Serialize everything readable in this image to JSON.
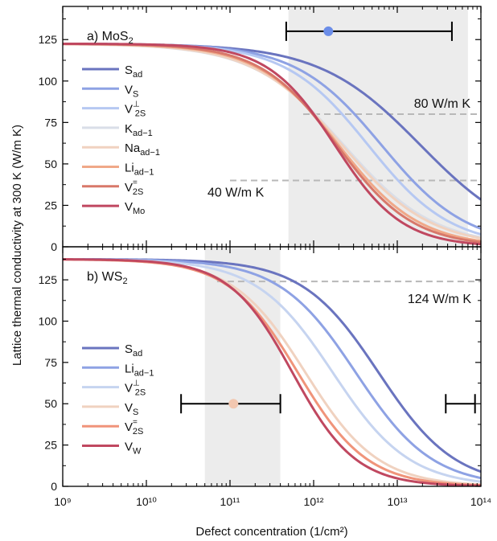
{
  "figure": {
    "ylabel": "Lattice thermal conductivity at 300 K (W/m K)",
    "xlabel": "Defect concentration (1/cm²)"
  },
  "chart_data": [
    {
      "type": "line",
      "panel": "top",
      "title_main": "a) MoS",
      "title_sub": "2",
      "xscale": "log",
      "xlim": [
        1000000000.0,
        100000000000000.0
      ],
      "ylim": [
        0,
        145
      ],
      "yticks": [
        0,
        25,
        50,
        75,
        100,
        125
      ],
      "x_tick_labels": [],
      "legend_position": "left",
      "grid": false,
      "shaded_band": [
        500000000000.0,
        8000000000000.0
      ],
      "shaded_band_2": [
        2500000000000.0,
        70000000000000.0
      ],
      "series": [
        {
          "main": "S",
          "sub": "ad",
          "sup": "",
          "color": "#6a74bf",
          "k0": 122.5,
          "x50": 19000000000000.0,
          "n": 0.72
        },
        {
          "main": "V",
          "sub": "S",
          "sup": "",
          "color": "#8ea2e4",
          "k0": 122.5,
          "x50": 6500000000000.0,
          "n": 0.85
        },
        {
          "main": "V",
          "sub": "2S",
          "sup": "⊥",
          "color": "#b6c8f2",
          "k0": 122.5,
          "x50": 4500000000000.0,
          "n": 0.88
        },
        {
          "main": "K",
          "sub": "ad−1",
          "sup": "",
          "color": "#d9dee8",
          "k0": 122.5,
          "x50": 2300000000000.0,
          "n": 0.8
        },
        {
          "main": "Na",
          "sub": "ad−1",
          "sup": "",
          "color": "#f0d2c0",
          "k0": 122.5,
          "x50": 2200000000000.0,
          "n": 0.82
        },
        {
          "main": "Li",
          "sub": "ad−1",
          "sup": "",
          "color": "#f0a888",
          "k0": 122.5,
          "x50": 2000000000000.0,
          "n": 0.9
        },
        {
          "main": "V",
          "sub": "2S",
          "sup": "=",
          "color": "#d8786a",
          "k0": 122.5,
          "x50": 1900000000000.0,
          "n": 0.95
        },
        {
          "main": "V",
          "sub": "Mo",
          "sup": "",
          "color": "#c04860",
          "k0": 122.5,
          "x50": 1800000000000.0,
          "n": 1.08
        }
      ],
      "reference_lines": [
        {
          "y": 80,
          "x_from": 750000000000.0,
          "label": "80 W/m K"
        },
        {
          "y": 40,
          "x_from": 100000000000.0,
          "label": "40 W/m K"
        }
      ],
      "experiment": {
        "x": 1500000000000.0,
        "y": 130,
        "xerr_low": 470000000000.0,
        "xerr_high": 45000000000000.0,
        "color": "#6b8de8"
      }
    },
    {
      "type": "line",
      "panel": "bottom",
      "title_main": "b) WS",
      "title_sub": "2",
      "xscale": "log",
      "xlim": [
        1000000000.0,
        100000000000000.0
      ],
      "ylim": [
        0,
        145
      ],
      "yticks": [
        0,
        25,
        50,
        75,
        100,
        125
      ],
      "x_tick_labels": [
        "10⁹",
        "10¹⁰",
        "10¹¹",
        "10¹²",
        "10¹³",
        "10¹⁴"
      ],
      "legend_position": "left",
      "grid": false,
      "shaded_band": [
        50000000000.0,
        400000000000.0
      ],
      "series": [
        {
          "main": "S",
          "sub": "ad",
          "sup": "",
          "color": "#6a74bf",
          "k0": 137.5,
          "x50": 6000000000000.0,
          "n": 0.95
        },
        {
          "main": "Li",
          "sub": "ad−1",
          "sup": "",
          "color": "#8ea2e4",
          "k0": 137.5,
          "x50": 3200000000000.0,
          "n": 0.95
        },
        {
          "main": "V",
          "sub": "2S",
          "sup": "⊥",
          "color": "#c6d4f0",
          "k0": 137.5,
          "x50": 1700000000000.0,
          "n": 0.95
        },
        {
          "main": "V",
          "sub": "S",
          "sup": "",
          "color": "#f0d2c0",
          "k0": 137.5,
          "x50": 800000000000.0,
          "n": 1.0
        },
        {
          "main": "V",
          "sub": "2S",
          "sup": "=",
          "color": "#f0947a",
          "k0": 137.5,
          "x50": 650000000000.0,
          "n": 1.05
        },
        {
          "main": "V",
          "sub": "W",
          "sup": "",
          "color": "#c04860",
          "k0": 137.5,
          "x50": 560000000000.0,
          "n": 1.15
        }
      ],
      "reference_lines": [
        {
          "y": 124,
          "x_from": 70000000000.0,
          "label": "124 W/m K"
        }
      ],
      "experiment": {
        "x": 110000000000.0,
        "y": 50,
        "xerr_low": 26000000000.0,
        "xerr_high": 400000000000.0,
        "color": "#f2c7b0"
      },
      "experiment_2": {
        "x": 100000000000000.0,
        "y": 50,
        "xerr_low": 38000000000000.0,
        "xerr_high": 85000000000000.0,
        "color": "#000000"
      }
    }
  ]
}
